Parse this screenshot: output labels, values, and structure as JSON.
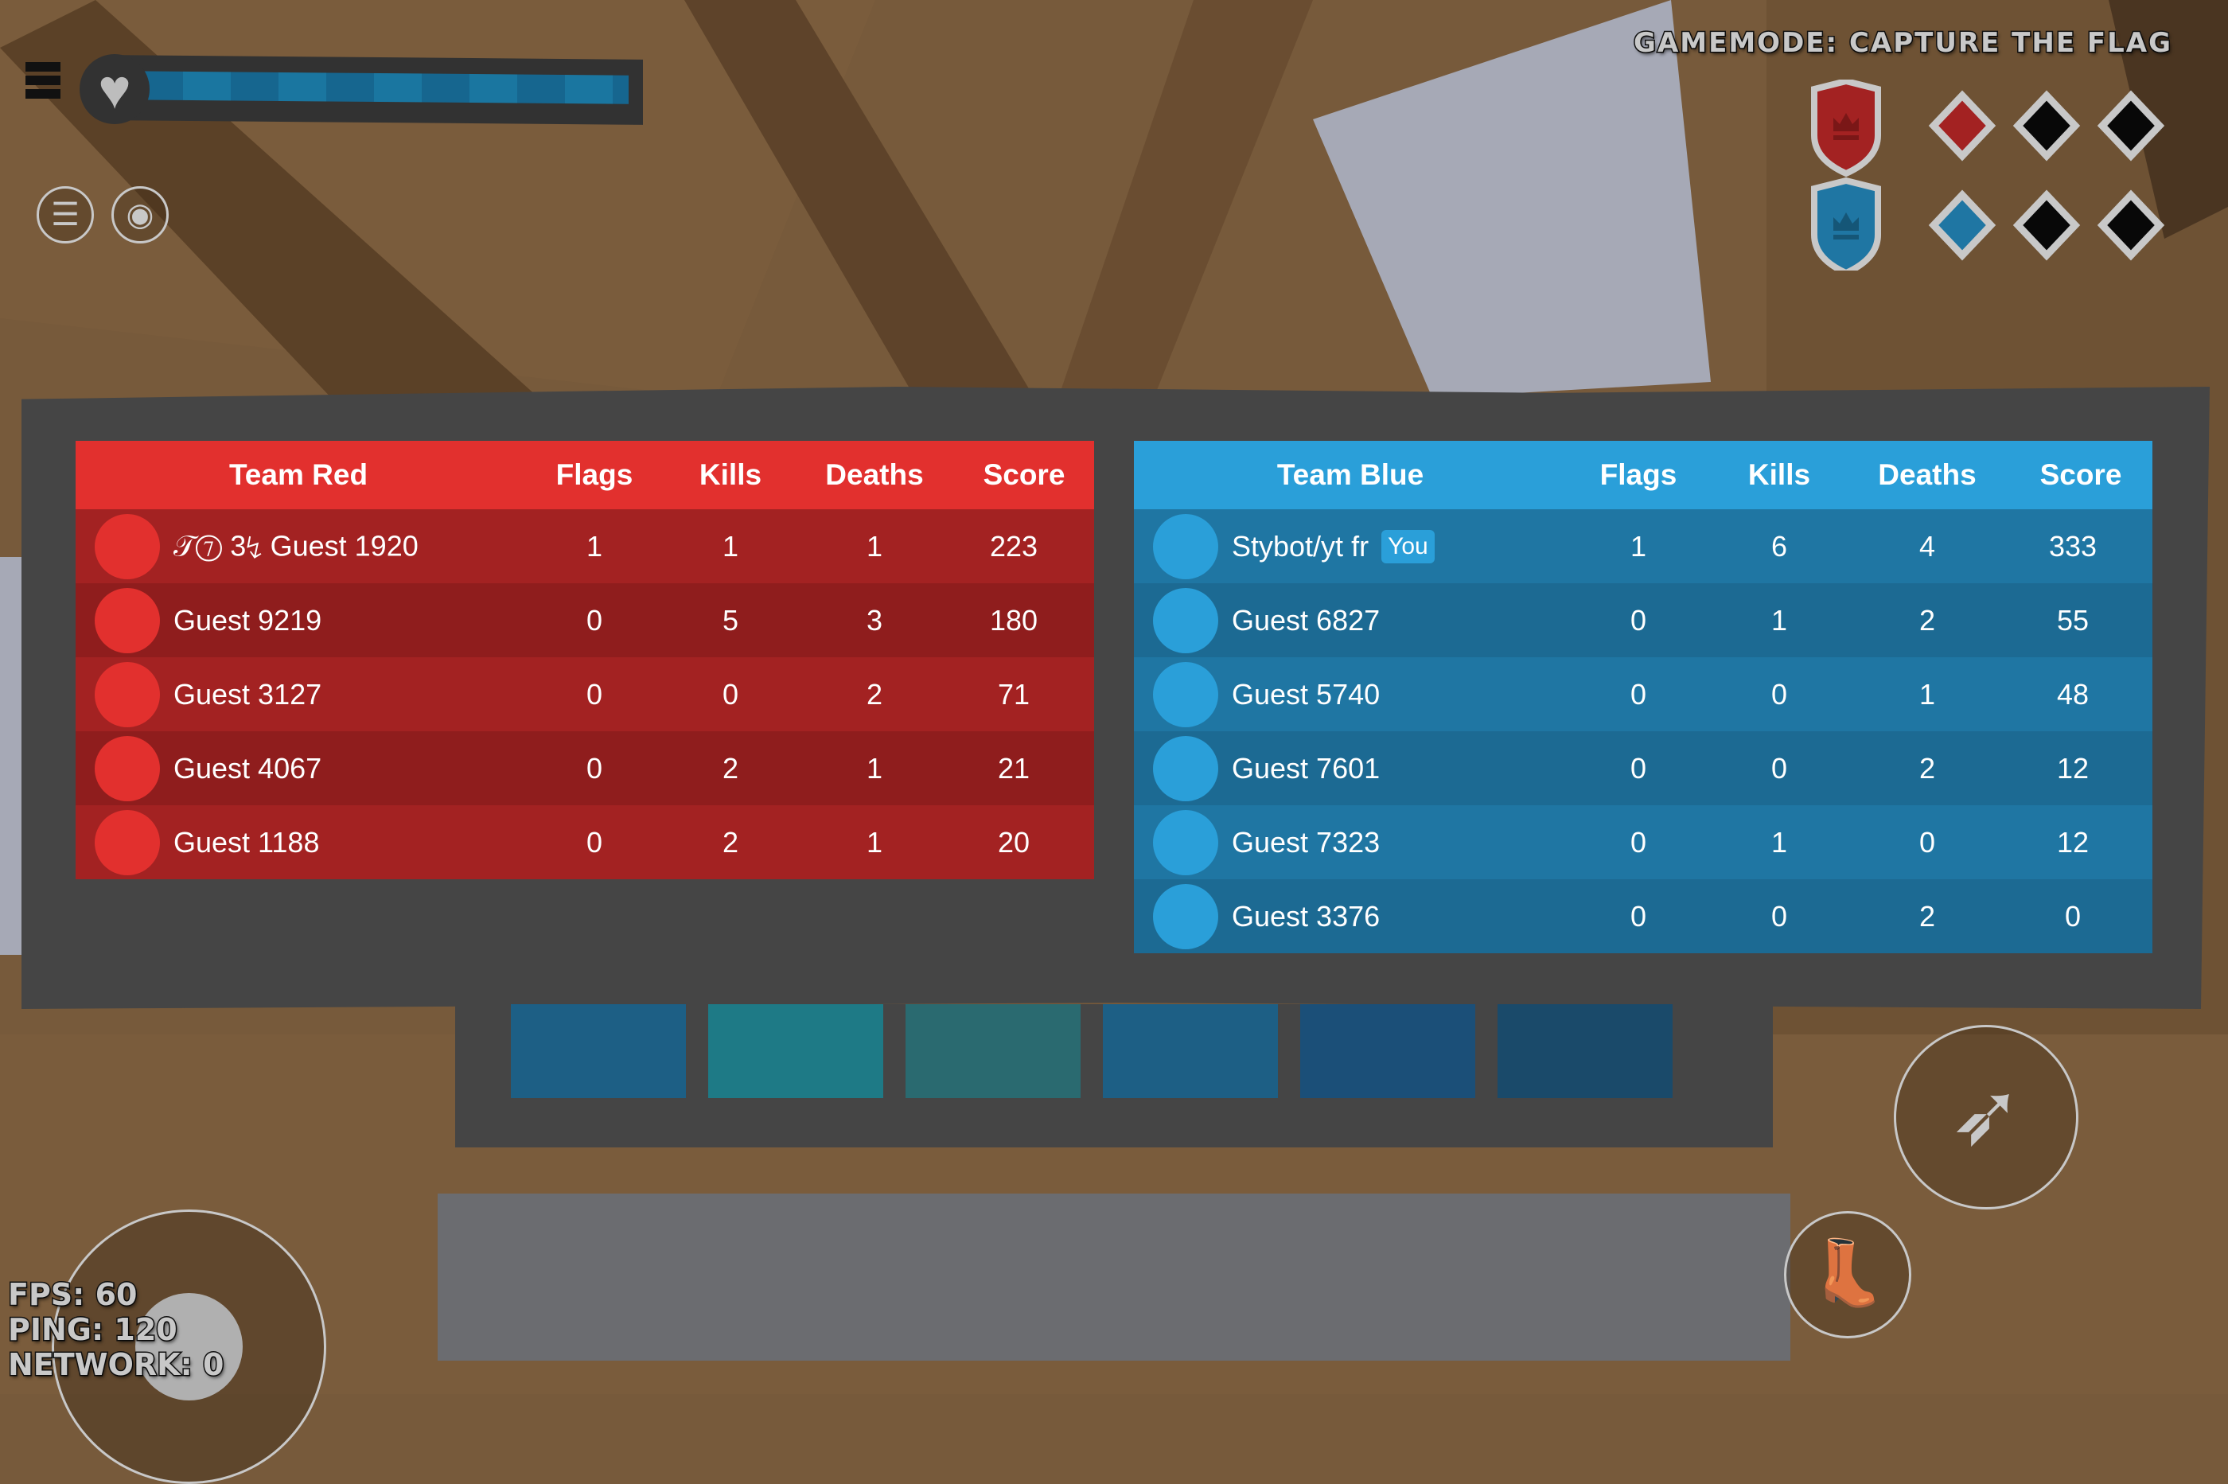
{
  "hud": {
    "gamemode": "GAMEMODE: CAPTURE THE FLAG",
    "health_percent": 100,
    "fps": "FPS: 60",
    "ping": "PING: 120",
    "network": "NETWORK: 0"
  },
  "flags": {
    "red": {
      "captured": 1,
      "total": 3,
      "color": "#a32222"
    },
    "blue": {
      "captured": 1,
      "total": 3,
      "color": "#1f76a3"
    }
  },
  "columns": [
    "Flags",
    "Kills",
    "Deaths",
    "Score"
  ],
  "red": {
    "title": "Team Red",
    "color": "#e2302e",
    "rows": [
      {
        "name": "𝒯⑦ 3↯ Guest 1920",
        "flags": "1",
        "kills": "1",
        "deaths": "1",
        "score": "223"
      },
      {
        "name": "Guest 9219",
        "flags": "0",
        "kills": "5",
        "deaths": "3",
        "score": "180"
      },
      {
        "name": "Guest 3127",
        "flags": "0",
        "kills": "0",
        "deaths": "2",
        "score": "71"
      },
      {
        "name": "Guest 4067",
        "flags": "0",
        "kills": "2",
        "deaths": "1",
        "score": "21"
      },
      {
        "name": "Guest 1188",
        "flags": "0",
        "kills": "2",
        "deaths": "1",
        "score": "20"
      }
    ]
  },
  "blue": {
    "title": "Team Blue",
    "color": "#2a9fd9",
    "you_badge": "You",
    "rows": [
      {
        "name": "Stybot/yt fr",
        "flags": "1",
        "kills": "6",
        "deaths": "4",
        "score": "333"
      },
      {
        "name": "Guest 6827",
        "flags": "0",
        "kills": "1",
        "deaths": "2",
        "score": "55"
      },
      {
        "name": "Guest 5740",
        "flags": "0",
        "kills": "0",
        "deaths": "1",
        "score": "48"
      },
      {
        "name": "Guest 7601",
        "flags": "0",
        "kills": "0",
        "deaths": "2",
        "score": "12"
      },
      {
        "name": "Guest 7323",
        "flags": "0",
        "kills": "1",
        "deaths": "0",
        "score": "12"
      },
      {
        "name": "Guest 3376",
        "flags": "0",
        "kills": "0",
        "deaths": "2",
        "score": "0"
      }
    ]
  }
}
